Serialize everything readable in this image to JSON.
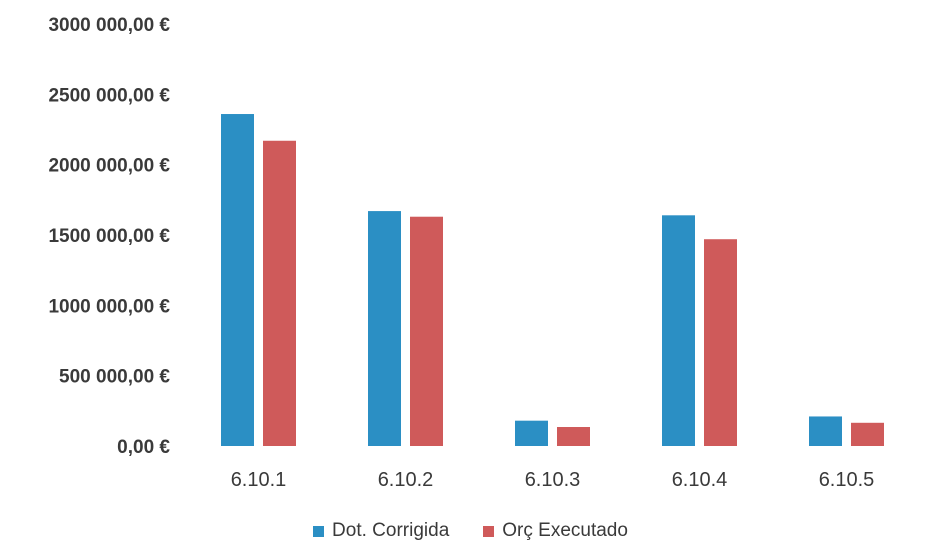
{
  "chart_data": {
    "type": "bar",
    "categories": [
      "6.10.1",
      "6.10.2",
      "6.10.3",
      "6.10.4",
      "6.10.5"
    ],
    "series": [
      {
        "name": "Dot. Corrigida",
        "color": "#2b8fc4",
        "values": [
          2360000,
          1670000,
          180000,
          1640000,
          210000
        ]
      },
      {
        "name": "Orç Executado",
        "color": "#cf5a5a",
        "values": [
          2170000,
          1630000,
          135000,
          1470000,
          165000
        ]
      }
    ],
    "y_ticks": [
      {
        "value": 0,
        "label": "0,00 €"
      },
      {
        "value": 500000,
        "label": "500 000,00 €"
      },
      {
        "value": 1000000,
        "label": "1000 000,00 €"
      },
      {
        "value": 1500000,
        "label": "1500 000,00 €"
      },
      {
        "value": 2000000,
        "label": "2000 000,00 €"
      },
      {
        "value": 2500000,
        "label": "2500 000,00 €"
      },
      {
        "value": 3000000,
        "label": "3000 000,00 €"
      }
    ],
    "ylim": [
      0,
      3000000
    ],
    "grid": false,
    "legend_position": "bottom"
  }
}
